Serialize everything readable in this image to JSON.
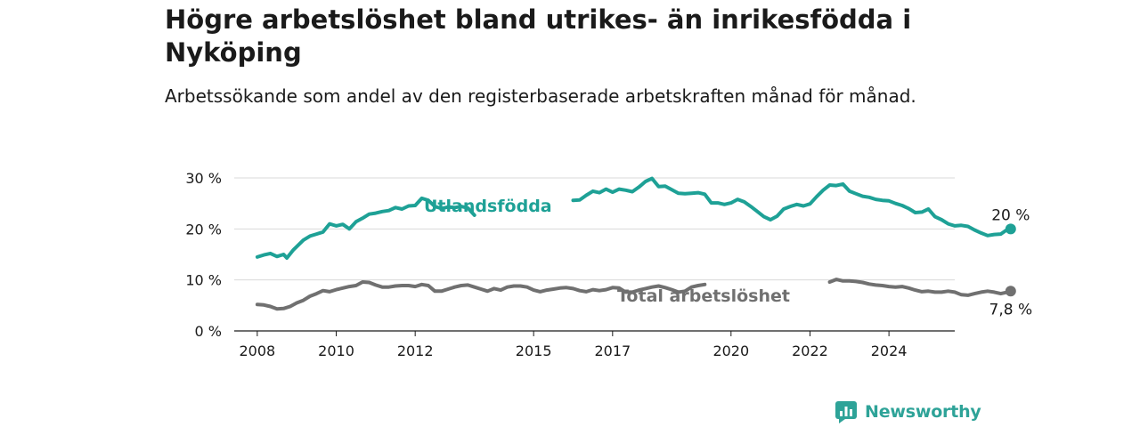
{
  "title": "Högre arbetslöshet bland utrikes- än inrikesfödda i Nyköping",
  "subtitle": "Arbetssökande som andel av den registerbaserade arbetskraften månad för månad.",
  "logo_text": "Newsworthy",
  "chart_data": {
    "type": "line",
    "title": "Högre arbetslöshet bland utrikes- än inrikesfödda i Nyköping",
    "subtitle": "Arbetssökande som andel av den registerbaserade arbetskraften månad för månad.",
    "x_ticks": [
      2008,
      2010,
      2012,
      2015,
      2017,
      2020,
      2022,
      2024
    ],
    "y_ticks": [
      0,
      10,
      20,
      30
    ],
    "y_tick_labels": [
      "0 %",
      "10 %",
      "20 %",
      "30 %"
    ],
    "xlim": [
      "2007-06",
      "2025-09"
    ],
    "ylim": [
      0,
      30
    ],
    "grid": "horizontal",
    "series": [
      {
        "name": "Utlandsfödda",
        "color": "#1ea196",
        "end_label": "20 %",
        "points": [
          [
            "2008-01",
            14.5
          ],
          [
            "2008-03",
            14.9
          ],
          [
            "2008-05",
            15.2
          ],
          [
            "2008-07",
            14.6
          ],
          [
            "2008-09",
            15.0
          ],
          [
            "2008-10",
            14.3
          ],
          [
            "2008-12",
            15.9
          ],
          [
            "2009-03",
            17.8
          ],
          [
            "2009-05",
            18.6
          ],
          [
            "2009-07",
            19.0
          ],
          [
            "2009-09",
            19.4
          ],
          [
            "2009-11",
            21.0
          ],
          [
            "2010-01",
            20.6
          ],
          [
            "2010-03",
            20.9
          ],
          [
            "2010-05",
            20.0
          ],
          [
            "2010-07",
            21.4
          ],
          [
            "2010-09",
            22.1
          ],
          [
            "2010-11",
            22.9
          ],
          [
            "2011-01",
            23.1
          ],
          [
            "2011-03",
            23.4
          ],
          [
            "2011-05",
            23.6
          ],
          [
            "2011-07",
            24.2
          ],
          [
            "2011-09",
            23.9
          ],
          [
            "2011-11",
            24.5
          ],
          [
            "2012-01",
            24.6
          ],
          [
            "2012-03",
            26.0
          ],
          [
            "2012-05",
            25.6
          ],
          [
            "2012-07",
            24.4
          ],
          [
            "2012-09",
            24.0
          ],
          [
            "2012-11",
            24.3
          ],
          [
            "2013-01",
            24.2
          ],
          [
            "2013-03",
            24.4
          ],
          [
            "2013-05",
            24.1
          ],
          [
            "2013-07",
            22.7
          ],
          null,
          [
            "2016-01",
            25.6
          ],
          [
            "2016-03",
            25.7
          ],
          [
            "2016-05",
            26.6
          ],
          [
            "2016-07",
            27.4
          ],
          [
            "2016-09",
            27.1
          ],
          [
            "2016-11",
            27.8
          ],
          [
            "2017-01",
            27.2
          ],
          [
            "2017-03",
            27.8
          ],
          [
            "2017-05",
            27.6
          ],
          [
            "2017-07",
            27.3
          ],
          [
            "2017-09",
            28.2
          ],
          [
            "2017-11",
            29.3
          ],
          [
            "2018-01",
            29.9
          ],
          [
            "2018-03",
            28.3
          ],
          [
            "2018-05",
            28.4
          ],
          [
            "2018-07",
            27.7
          ],
          [
            "2018-09",
            27.0
          ],
          [
            "2018-11",
            26.9
          ],
          [
            "2019-01",
            27.0
          ],
          [
            "2019-03",
            27.1
          ],
          [
            "2019-05",
            26.8
          ],
          [
            "2019-07",
            25.1
          ],
          [
            "2019-09",
            25.1
          ],
          [
            "2019-11",
            24.8
          ],
          [
            "2020-01",
            25.1
          ],
          [
            "2020-03",
            25.8
          ],
          [
            "2020-05",
            25.3
          ],
          [
            "2020-07",
            24.4
          ],
          [
            "2020-09",
            23.4
          ],
          [
            "2020-11",
            22.4
          ],
          [
            "2021-01",
            21.8
          ],
          [
            "2021-03",
            22.5
          ],
          [
            "2021-05",
            23.9
          ],
          [
            "2021-07",
            24.4
          ],
          [
            "2021-09",
            24.8
          ],
          [
            "2021-11",
            24.5
          ],
          [
            "2022-01",
            24.9
          ],
          [
            "2022-03",
            26.3
          ],
          [
            "2022-05",
            27.6
          ],
          [
            "2022-07",
            28.6
          ],
          [
            "2022-09",
            28.5
          ],
          [
            "2022-11",
            28.8
          ],
          [
            "2023-01",
            27.4
          ],
          [
            "2023-03",
            26.9
          ],
          [
            "2023-05",
            26.4
          ],
          [
            "2023-07",
            26.2
          ],
          [
            "2023-09",
            25.8
          ],
          [
            "2023-11",
            25.6
          ],
          [
            "2024-01",
            25.5
          ],
          [
            "2024-03",
            25.0
          ],
          [
            "2024-05",
            24.6
          ],
          [
            "2024-07",
            24.0
          ],
          [
            "2024-09",
            23.2
          ],
          [
            "2024-11",
            23.3
          ],
          [
            "2025-01",
            23.9
          ],
          [
            "2025-03",
            22.4
          ],
          [
            "2025-05",
            21.8
          ],
          [
            "2025-07",
            21.0
          ],
          [
            "2025-09",
            20.6
          ],
          [
            "2025-11",
            20.7
          ],
          [
            "2026-01",
            20.5
          ],
          [
            "2026-03",
            19.8
          ],
          [
            "2026-05",
            19.2
          ],
          [
            "2026-07",
            18.7
          ],
          [
            "2026-09",
            18.9
          ],
          [
            "2026-11",
            19.0
          ],
          [
            "2027-01",
            19.9
          ],
          [
            "2027-02",
            20.0
          ]
        ]
      },
      {
        "name": "Total arbetslöshet",
        "color": "#707070",
        "end_label": "7,8 %",
        "points": [
          [
            "2008-01",
            5.2
          ],
          [
            "2008-03",
            5.1
          ],
          [
            "2008-05",
            4.8
          ],
          [
            "2008-07",
            4.3
          ],
          [
            "2008-09",
            4.4
          ],
          [
            "2008-11",
            4.8
          ],
          [
            "2009-01",
            5.5
          ],
          [
            "2009-03",
            6.0
          ],
          [
            "2009-05",
            6.8
          ],
          [
            "2009-07",
            7.3
          ],
          [
            "2009-09",
            7.9
          ],
          [
            "2009-11",
            7.7
          ],
          [
            "2010-01",
            8.1
          ],
          [
            "2010-03",
            8.4
          ],
          [
            "2010-05",
            8.7
          ],
          [
            "2010-07",
            8.9
          ],
          [
            "2010-09",
            9.6
          ],
          [
            "2010-11",
            9.5
          ],
          [
            "2011-01",
            9.0
          ],
          [
            "2011-03",
            8.6
          ],
          [
            "2011-05",
            8.6
          ],
          [
            "2011-07",
            8.8
          ],
          [
            "2011-09",
            8.9
          ],
          [
            "2011-11",
            8.9
          ],
          [
            "2012-01",
            8.7
          ],
          [
            "2012-03",
            9.1
          ],
          [
            "2012-05",
            8.9
          ],
          [
            "2012-07",
            7.8
          ],
          [
            "2012-09",
            7.8
          ],
          [
            "2012-11",
            8.2
          ],
          [
            "2013-01",
            8.6
          ],
          [
            "2013-03",
            8.9
          ],
          [
            "2013-05",
            9.0
          ],
          [
            "2013-07",
            8.6
          ],
          [
            "2013-09",
            8.2
          ],
          [
            "2013-11",
            7.8
          ],
          [
            "2014-01",
            8.3
          ],
          [
            "2014-03",
            8.0
          ],
          [
            "2014-05",
            8.6
          ],
          [
            "2014-07",
            8.8
          ],
          [
            "2014-09",
            8.8
          ],
          [
            "2014-11",
            8.6
          ],
          [
            "2015-01",
            8.0
          ],
          [
            "2015-03",
            7.7
          ],
          [
            "2015-05",
            8.0
          ],
          [
            "2015-07",
            8.2
          ],
          [
            "2015-09",
            8.4
          ],
          [
            "2015-11",
            8.5
          ],
          [
            "2016-01",
            8.3
          ],
          [
            "2016-03",
            7.9
          ],
          [
            "2016-05",
            7.7
          ],
          [
            "2016-07",
            8.1
          ],
          [
            "2016-09",
            7.9
          ],
          [
            "2016-11",
            8.1
          ],
          [
            "2017-01",
            8.5
          ],
          [
            "2017-03",
            8.4
          ],
          [
            "2017-05",
            7.6
          ],
          [
            "2017-07",
            7.6
          ],
          [
            "2017-09",
            8.0
          ],
          [
            "2017-11",
            8.3
          ],
          [
            "2018-01",
            8.6
          ],
          [
            "2018-03",
            8.8
          ],
          [
            "2018-05",
            8.5
          ],
          [
            "2018-07",
            8.1
          ],
          [
            "2018-09",
            7.6
          ],
          [
            "2018-11",
            7.8
          ],
          [
            "2019-01",
            8.6
          ],
          [
            "2019-03",
            8.9
          ],
          [
            "2019-05",
            9.1
          ],
          null,
          [
            "2022-07",
            9.6
          ],
          [
            "2022-09",
            10.1
          ],
          [
            "2022-11",
            9.8
          ],
          [
            "2023-01",
            9.8
          ],
          [
            "2023-03",
            9.7
          ],
          [
            "2023-05",
            9.5
          ],
          [
            "2023-07",
            9.2
          ],
          [
            "2023-09",
            9.0
          ],
          [
            "2023-11",
            8.9
          ],
          [
            "2024-01",
            8.7
          ],
          [
            "2024-03",
            8.6
          ],
          [
            "2024-05",
            8.7
          ],
          [
            "2024-07",
            8.4
          ],
          [
            "2024-09",
            8.0
          ],
          [
            "2024-11",
            7.7
          ],
          [
            "2025-01",
            7.8
          ],
          [
            "2025-03",
            7.6
          ],
          [
            "2025-05",
            7.6
          ],
          [
            "2025-07",
            7.8
          ],
          [
            "2025-09",
            7.6
          ],
          [
            "2025-11",
            7.1
          ],
          [
            "2026-01",
            7.0
          ],
          [
            "2026-03",
            7.3
          ],
          [
            "2026-05",
            7.6
          ],
          [
            "2026-07",
            7.8
          ],
          [
            "2026-09",
            7.6
          ],
          [
            "2026-11",
            7.3
          ],
          [
            "2027-01",
            7.6
          ],
          [
            "2027-02",
            7.8
          ]
        ]
      }
    ]
  }
}
